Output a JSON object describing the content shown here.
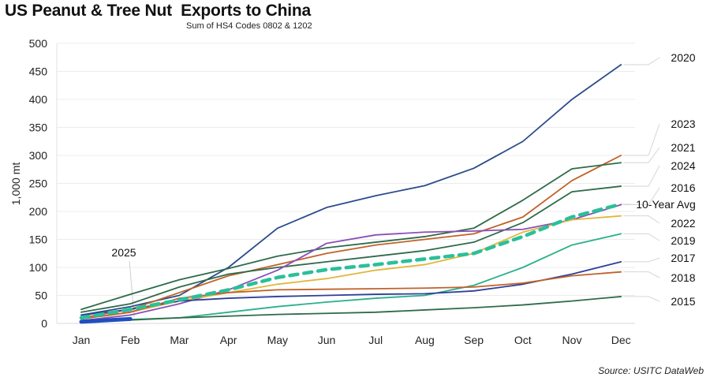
{
  "chart_data": {
    "type": "line",
    "title": "US Peanut & Tree Nut  Exports to China",
    "subtitle": "Sum of HS4 Codes 0802 & 1202",
    "xlabel": "",
    "ylabel": "1,000 mt",
    "source": "Source: USITC DataWeb",
    "categories": [
      "Jan",
      "Feb",
      "Mar",
      "Apr",
      "May",
      "Jun",
      "Jul",
      "Aug",
      "Sep",
      "Oct",
      "Nov",
      "Dec"
    ],
    "ylim": [
      0,
      500
    ],
    "yticks": [
      0,
      50,
      100,
      150,
      200,
      250,
      300,
      350,
      400,
      450,
      500
    ],
    "grid": true,
    "legend_placement": "right (direct labels)",
    "series": [
      {
        "name": "2020",
        "color": "#2b4b8c",
        "dashed": false,
        "thick": false,
        "values": [
          15,
          30,
          50,
          100,
          170,
          207,
          228,
          246,
          277,
          325,
          400,
          462
        ]
      },
      {
        "name": "2023",
        "color": "#c0622a",
        "dashed": false,
        "thick": false,
        "values": [
          10,
          25,
          55,
          85,
          105,
          125,
          140,
          150,
          160,
          190,
          255,
          300
        ]
      },
      {
        "name": "2021",
        "color": "#2e6b4a",
        "dashed": false,
        "thick": false,
        "values": [
          25,
          52,
          78,
          98,
          120,
          135,
          145,
          155,
          170,
          220,
          276,
          287
        ]
      },
      {
        "name": "2024",
        "color": "#2e6b4a",
        "dashed": false,
        "thick": false,
        "values": [
          20,
          35,
          65,
          88,
          100,
          110,
          120,
          130,
          145,
          180,
          235,
          245
        ]
      },
      {
        "name": "2016",
        "color": "#8a4fb8",
        "dashed": false,
        "thick": false,
        "values": [
          5,
          15,
          35,
          60,
          95,
          143,
          158,
          163,
          165,
          168,
          185,
          212
        ]
      },
      {
        "name": "10-Year Avg",
        "color": "#2bbf9a",
        "dashed": true,
        "thick": true,
        "values": [
          10,
          25,
          42,
          60,
          82,
          96,
          105,
          115,
          125,
          155,
          190,
          213
        ]
      },
      {
        "name": "2022",
        "color": "#e0b73a",
        "dashed": false,
        "thick": false,
        "values": [
          8,
          20,
          40,
          55,
          70,
          80,
          95,
          105,
          125,
          163,
          185,
          192
        ]
      },
      {
        "name": "2019",
        "color": "#2ab08a",
        "dashed": false,
        "thick": false,
        "values": [
          5,
          7,
          10,
          20,
          30,
          38,
          45,
          50,
          68,
          100,
          140,
          160
        ]
      },
      {
        "name": "2017",
        "color": "#2f3f9a",
        "dashed": false,
        "thick": false,
        "values": [
          15,
          25,
          40,
          45,
          48,
          50,
          52,
          53,
          58,
          70,
          88,
          110
        ]
      },
      {
        "name": "2018",
        "color": "#c0622a",
        "dashed": false,
        "thick": false,
        "values": [
          8,
          20,
          45,
          55,
          60,
          61,
          62,
          63,
          65,
          72,
          85,
          92
        ]
      },
      {
        "name": "2015",
        "color": "#2e6b4a",
        "dashed": false,
        "thick": false,
        "values": [
          3,
          6,
          10,
          13,
          16,
          18,
          20,
          24,
          28,
          33,
          40,
          48
        ]
      },
      {
        "name": "2025",
        "color": "#1f4fc0",
        "dashed": false,
        "thick": true,
        "values": [
          3,
          8
        ]
      }
    ]
  }
}
